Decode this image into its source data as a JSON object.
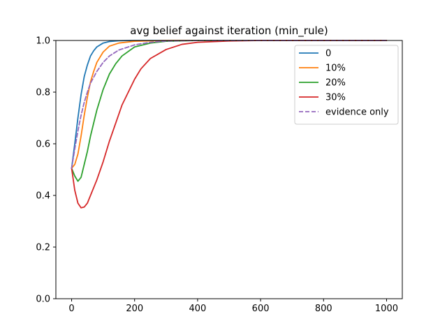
{
  "chart_data": {
    "type": "line",
    "title": "avg belief against iteration (min_rule)",
    "xlabel": "",
    "ylabel": "",
    "xlim": [
      -50,
      1050
    ],
    "ylim": [
      0.0,
      1.0
    ],
    "xticks": [
      0,
      200,
      400,
      600,
      800,
      1000
    ],
    "yticks": [
      0.0,
      0.2,
      0.4,
      0.6,
      0.8,
      1.0
    ],
    "xtick_labels": [
      "0",
      "200",
      "400",
      "600",
      "800",
      "1000"
    ],
    "ytick_labels": [
      "0.0",
      "0.2",
      "0.4",
      "0.6",
      "0.8",
      "1.0"
    ],
    "grid": false,
    "legend_position": "top-right",
    "series": [
      {
        "name": "0",
        "color": "#1f77b4",
        "dash": "solid",
        "points": [
          [
            0,
            0.505
          ],
          [
            10,
            0.6
          ],
          [
            20,
            0.7
          ],
          [
            30,
            0.79
          ],
          [
            40,
            0.86
          ],
          [
            50,
            0.905
          ],
          [
            60,
            0.94
          ],
          [
            70,
            0.96
          ],
          [
            80,
            0.975
          ],
          [
            100,
            0.99
          ],
          [
            120,
            0.996
          ],
          [
            150,
            0.999
          ],
          [
            200,
            1.0
          ],
          [
            1000,
            1.0
          ]
        ]
      },
      {
        "name": "10%",
        "color": "#ff7f0e",
        "dash": "solid",
        "points": [
          [
            0,
            0.505
          ],
          [
            10,
            0.52
          ],
          [
            20,
            0.56
          ],
          [
            30,
            0.63
          ],
          [
            40,
            0.71
          ],
          [
            50,
            0.78
          ],
          [
            60,
            0.84
          ],
          [
            70,
            0.88
          ],
          [
            80,
            0.915
          ],
          [
            100,
            0.955
          ],
          [
            120,
            0.978
          ],
          [
            150,
            0.99
          ],
          [
            200,
            0.997
          ],
          [
            300,
            1.0
          ],
          [
            1000,
            1.0
          ]
        ]
      },
      {
        "name": "20%",
        "color": "#2ca02c",
        "dash": "solid",
        "points": [
          [
            0,
            0.505
          ],
          [
            10,
            0.475
          ],
          [
            20,
            0.455
          ],
          [
            30,
            0.47
          ],
          [
            40,
            0.52
          ],
          [
            50,
            0.57
          ],
          [
            60,
            0.63
          ],
          [
            70,
            0.68
          ],
          [
            80,
            0.73
          ],
          [
            100,
            0.81
          ],
          [
            120,
            0.87
          ],
          [
            140,
            0.91
          ],
          [
            160,
            0.94
          ],
          [
            200,
            0.975
          ],
          [
            250,
            0.99
          ],
          [
            300,
            0.997
          ],
          [
            400,
            1.0
          ],
          [
            1000,
            1.0
          ]
        ]
      },
      {
        "name": "30%",
        "color": "#d62728",
        "dash": "solid",
        "points": [
          [
            0,
            0.505
          ],
          [
            10,
            0.42
          ],
          [
            20,
            0.37
          ],
          [
            30,
            0.352
          ],
          [
            40,
            0.355
          ],
          [
            50,
            0.37
          ],
          [
            60,
            0.4
          ],
          [
            80,
            0.46
          ],
          [
            100,
            0.53
          ],
          [
            120,
            0.61
          ],
          [
            140,
            0.68
          ],
          [
            160,
            0.75
          ],
          [
            180,
            0.8
          ],
          [
            200,
            0.85
          ],
          [
            220,
            0.89
          ],
          [
            250,
            0.93
          ],
          [
            300,
            0.965
          ],
          [
            350,
            0.985
          ],
          [
            400,
            0.993
          ],
          [
            500,
            0.998
          ],
          [
            600,
            1.0
          ],
          [
            1000,
            1.0
          ]
        ]
      },
      {
        "name": "evidence only",
        "color": "#9467bd",
        "dash": "dashed",
        "points": [
          [
            0,
            0.505
          ],
          [
            10,
            0.58
          ],
          [
            20,
            0.65
          ],
          [
            30,
            0.71
          ],
          [
            40,
            0.76
          ],
          [
            50,
            0.8
          ],
          [
            60,
            0.835
          ],
          [
            80,
            0.88
          ],
          [
            100,
            0.915
          ],
          [
            120,
            0.94
          ],
          [
            150,
            0.963
          ],
          [
            200,
            0.983
          ],
          [
            250,
            0.993
          ],
          [
            300,
            0.998
          ],
          [
            400,
            1.0
          ],
          [
            1000,
            1.0
          ]
        ]
      }
    ]
  }
}
